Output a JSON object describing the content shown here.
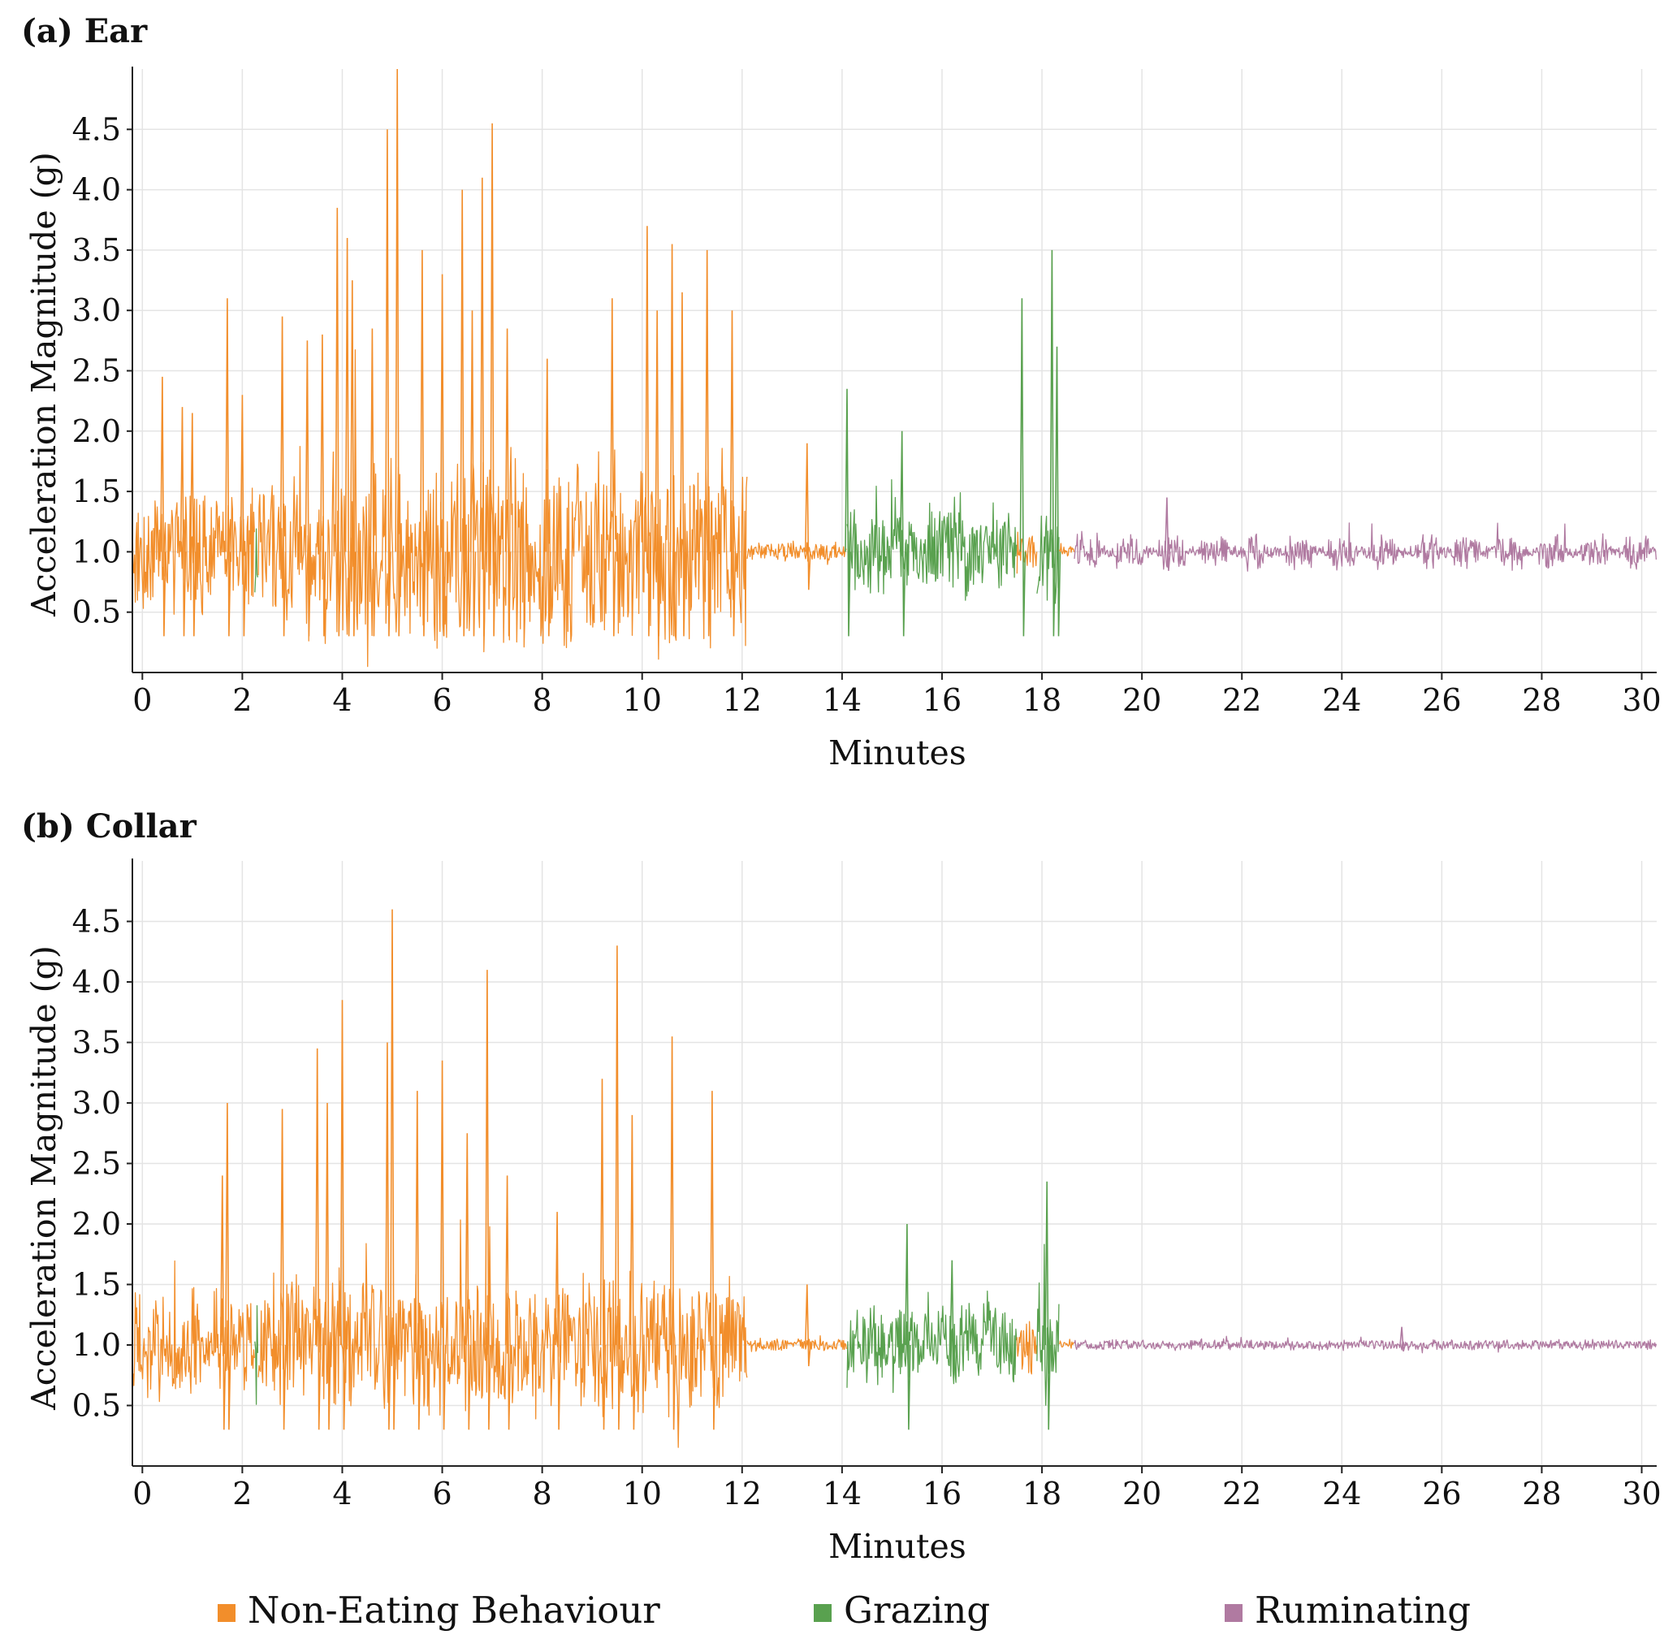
{
  "figure": {
    "legend_position": "bottom"
  },
  "colors": {
    "non_eating": "#f28e2b",
    "grazing": "#59a14f",
    "ruminating": "#b07aa1"
  },
  "legend": [
    {
      "key": "non_eating",
      "label": "Non-Eating Behaviour"
    },
    {
      "key": "grazing",
      "label": "Grazing"
    },
    {
      "key": "ruminating",
      "label": "Ruminating"
    }
  ],
  "chart_data": [
    {
      "type": "line",
      "title": "(a) Ear",
      "xlabel": "Minutes",
      "ylabel": "Acceleration Magnitude (g)",
      "xlim": [
        -0.2,
        30.3
      ],
      "ylim": [
        0.0,
        5.0
      ],
      "xticks": [
        0,
        2,
        4,
        6,
        8,
        10,
        12,
        14,
        16,
        18,
        20,
        22,
        24,
        26,
        28,
        30
      ],
      "yticks": [
        0.5,
        1.0,
        1.5,
        2.0,
        2.5,
        3.0,
        3.5,
        4.0,
        4.5
      ],
      "grid": true,
      "segments": [
        {
          "behaviour": "non_eating",
          "start": -0.2,
          "end": 2.25,
          "amp": 0.45
        },
        {
          "behaviour": "grazing",
          "start": 2.25,
          "end": 2.32,
          "amp": 0.45
        },
        {
          "behaviour": "non_eating",
          "start": 2.32,
          "end": 3.6,
          "amp": 0.55
        },
        {
          "behaviour": "non_eating",
          "start": 3.6,
          "end": 12.1,
          "amp": 0.75
        },
        {
          "behaviour": "non_eating",
          "start": 12.1,
          "end": 14.1,
          "amp": 0.08
        },
        {
          "behaviour": "grazing",
          "start": 14.1,
          "end": 17.5,
          "amp": 0.35
        },
        {
          "behaviour": "non_eating",
          "start": 17.5,
          "end": 17.9,
          "amp": 0.2
        },
        {
          "behaviour": "grazing",
          "start": 17.9,
          "end": 18.35,
          "amp": 0.45
        },
        {
          "behaviour": "non_eating",
          "start": 18.35,
          "end": 18.65,
          "amp": 0.04
        },
        {
          "behaviour": "ruminating",
          "start": 18.65,
          "end": 30.3,
          "amp": 0.14,
          "bursts": true
        }
      ],
      "peaks": [
        {
          "behaviour": "non_eating",
          "x": 0.4,
          "y": 2.45
        },
        {
          "behaviour": "non_eating",
          "x": 0.8,
          "y": 2.2
        },
        {
          "behaviour": "non_eating",
          "x": 1.0,
          "y": 2.15
        },
        {
          "behaviour": "non_eating",
          "x": 1.7,
          "y": 3.1
        },
        {
          "behaviour": "non_eating",
          "x": 2.0,
          "y": 2.3
        },
        {
          "behaviour": "non_eating",
          "x": 2.8,
          "y": 2.95
        },
        {
          "behaviour": "non_eating",
          "x": 3.3,
          "y": 2.75
        },
        {
          "behaviour": "non_eating",
          "x": 3.6,
          "y": 2.8
        },
        {
          "behaviour": "non_eating",
          "x": 3.9,
          "y": 3.85
        },
        {
          "behaviour": "non_eating",
          "x": 4.1,
          "y": 3.6
        },
        {
          "behaviour": "non_eating",
          "x": 4.2,
          "y": 3.25
        },
        {
          "behaviour": "non_eating",
          "x": 4.6,
          "y": 2.85
        },
        {
          "behaviour": "non_eating",
          "x": 4.9,
          "y": 4.5
        },
        {
          "behaviour": "non_eating",
          "x": 5.1,
          "y": 5.0
        },
        {
          "behaviour": "non_eating",
          "x": 5.6,
          "y": 3.5
        },
        {
          "behaviour": "non_eating",
          "x": 6.0,
          "y": 3.3
        },
        {
          "behaviour": "non_eating",
          "x": 6.4,
          "y": 4.0
        },
        {
          "behaviour": "non_eating",
          "x": 6.6,
          "y": 3.0
        },
        {
          "behaviour": "non_eating",
          "x": 6.8,
          "y": 4.1
        },
        {
          "behaviour": "non_eating",
          "x": 7.0,
          "y": 4.55
        },
        {
          "behaviour": "non_eating",
          "x": 7.3,
          "y": 2.85
        },
        {
          "behaviour": "non_eating",
          "x": 8.1,
          "y": 2.6
        },
        {
          "behaviour": "non_eating",
          "x": 9.4,
          "y": 3.1
        },
        {
          "behaviour": "non_eating",
          "x": 10.1,
          "y": 3.7
        },
        {
          "behaviour": "non_eating",
          "x": 10.3,
          "y": 3.0
        },
        {
          "behaviour": "non_eating",
          "x": 10.6,
          "y": 3.55
        },
        {
          "behaviour": "non_eating",
          "x": 10.8,
          "y": 3.15
        },
        {
          "behaviour": "non_eating",
          "x": 11.3,
          "y": 3.5
        },
        {
          "behaviour": "non_eating",
          "x": 11.8,
          "y": 3.0
        },
        {
          "behaviour": "non_eating",
          "x": 13.3,
          "y": 1.9
        },
        {
          "behaviour": "grazing",
          "x": 14.1,
          "y": 2.35
        },
        {
          "behaviour": "grazing",
          "x": 15.2,
          "y": 2.0
        },
        {
          "behaviour": "grazing",
          "x": 17.6,
          "y": 3.1
        },
        {
          "behaviour": "grazing",
          "x": 18.2,
          "y": 3.5
        },
        {
          "behaviour": "grazing",
          "x": 18.3,
          "y": 2.7
        },
        {
          "behaviour": "ruminating",
          "x": 20.5,
          "y": 1.45
        }
      ]
    },
    {
      "type": "line",
      "title": "(b) Collar",
      "xlabel": "Minutes",
      "ylabel": "Acceleration Magnitude (g)",
      "xlim": [
        -0.2,
        30.3
      ],
      "ylim": [
        0.0,
        5.0
      ],
      "xticks": [
        0,
        2,
        4,
        6,
        8,
        10,
        12,
        14,
        16,
        18,
        20,
        22,
        24,
        26,
        28,
        30
      ],
      "yticks": [
        0.5,
        1.0,
        1.5,
        2.0,
        2.5,
        3.0,
        3.5,
        4.0,
        4.5
      ],
      "grid": true,
      "segments": [
        {
          "behaviour": "non_eating",
          "start": -0.2,
          "end": 2.25,
          "amp": 0.4
        },
        {
          "behaviour": "grazing",
          "start": 2.25,
          "end": 2.32,
          "amp": 0.45
        },
        {
          "behaviour": "non_eating",
          "start": 2.32,
          "end": 3.6,
          "amp": 0.5
        },
        {
          "behaviour": "non_eating",
          "start": 3.6,
          "end": 12.1,
          "amp": 0.55
        },
        {
          "behaviour": "non_eating",
          "start": 12.1,
          "end": 14.1,
          "amp": 0.05
        },
        {
          "behaviour": "grazing",
          "start": 14.1,
          "end": 17.5,
          "amp": 0.3
        },
        {
          "behaviour": "non_eating",
          "start": 17.5,
          "end": 17.9,
          "amp": 0.25
        },
        {
          "behaviour": "grazing",
          "start": 17.9,
          "end": 18.35,
          "amp": 0.45
        },
        {
          "behaviour": "non_eating",
          "start": 18.35,
          "end": 18.65,
          "amp": 0.03
        },
        {
          "behaviour": "ruminating",
          "start": 18.65,
          "end": 30.3,
          "amp": 0.04,
          "bursts": false
        }
      ],
      "peaks": [
        {
          "behaviour": "non_eating",
          "x": 1.6,
          "y": 2.4
        },
        {
          "behaviour": "non_eating",
          "x": 1.7,
          "y": 3.0
        },
        {
          "behaviour": "non_eating",
          "x": 2.8,
          "y": 2.95
        },
        {
          "behaviour": "non_eating",
          "x": 3.5,
          "y": 3.45
        },
        {
          "behaviour": "non_eating",
          "x": 3.7,
          "y": 3.0
        },
        {
          "behaviour": "non_eating",
          "x": 4.0,
          "y": 3.85
        },
        {
          "behaviour": "non_eating",
          "x": 4.9,
          "y": 3.5
        },
        {
          "behaviour": "non_eating",
          "x": 5.0,
          "y": 4.6
        },
        {
          "behaviour": "non_eating",
          "x": 5.5,
          "y": 3.1
        },
        {
          "behaviour": "non_eating",
          "x": 6.0,
          "y": 3.35
        },
        {
          "behaviour": "non_eating",
          "x": 6.5,
          "y": 2.75
        },
        {
          "behaviour": "non_eating",
          "x": 6.9,
          "y": 4.1
        },
        {
          "behaviour": "non_eating",
          "x": 7.3,
          "y": 2.4
        },
        {
          "behaviour": "non_eating",
          "x": 8.3,
          "y": 2.1
        },
        {
          "behaviour": "non_eating",
          "x": 9.2,
          "y": 3.2
        },
        {
          "behaviour": "non_eating",
          "x": 9.5,
          "y": 4.3
        },
        {
          "behaviour": "non_eating",
          "x": 9.8,
          "y": 2.9
        },
        {
          "behaviour": "non_eating",
          "x": 10.6,
          "y": 3.55
        },
        {
          "behaviour": "non_eating",
          "x": 11.4,
          "y": 3.1
        },
        {
          "behaviour": "non_eating",
          "x": 13.3,
          "y": 1.5
        },
        {
          "behaviour": "grazing",
          "x": 15.3,
          "y": 2.0
        },
        {
          "behaviour": "grazing",
          "x": 16.2,
          "y": 1.7
        },
        {
          "behaviour": "grazing",
          "x": 18.1,
          "y": 2.35
        },
        {
          "behaviour": "ruminating",
          "x": 25.2,
          "y": 1.15
        }
      ]
    }
  ]
}
